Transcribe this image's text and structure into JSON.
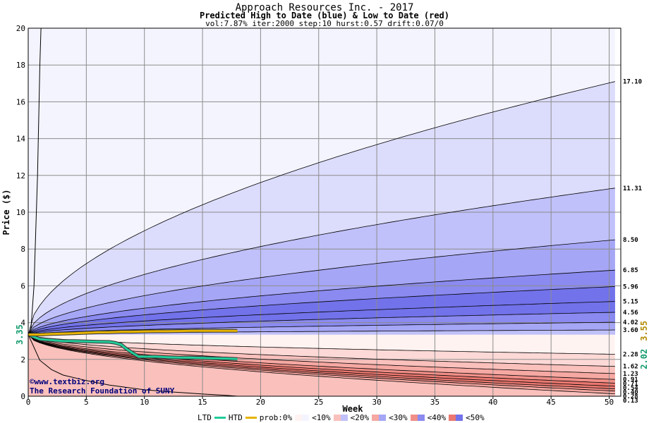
{
  "header": {
    "title": "Approach Resources Inc. - 2017",
    "subtitle": "Predicted High to Date (blue) &  Low to Date (red)",
    "params": "vol:7.87% iter:2000 step:10 hurst:0.57 drift:0.07/0"
  },
  "credit": {
    "line1": "©www.textbiz.org",
    "line2": "The Research Foundation of SUNY"
  },
  "legend": {
    "ltd": "LTD",
    "htd": "HTD",
    "prob": "prob:0%",
    "b1": "<10%",
    "b2": "<20%",
    "b3": "<30%",
    "b4": "<40%",
    "b5": "<50%"
  },
  "colors": {
    "blue_bands": [
      "#f4f4ff",
      "#dcdcfc",
      "#c0c0fa",
      "#a6a6f6",
      "#8a8af0",
      "#7272ea"
    ],
    "red_bands": [
      "#fff3f1",
      "#fcd9d6",
      "#fac0bc",
      "#f6a8a2",
      "#f08f88",
      "#ea7870"
    ],
    "ltd_line": "#22cc99",
    "htd_line": "#e8b400"
  },
  "chart_data": {
    "type": "area",
    "xlabel": "Week",
    "ylabel": "Price ($)",
    "xlim": [
      0,
      51
    ],
    "ylim": [
      0,
      20
    ],
    "x_ticks": [
      0,
      5,
      10,
      15,
      20,
      25,
      30,
      35,
      40,
      45,
      50
    ],
    "y_ticks": [
      0,
      2,
      4,
      6,
      8,
      10,
      12,
      14,
      16,
      18,
      20
    ],
    "grid": true,
    "start_price": 3.35,
    "start_label": "3.35",
    "right_markers": [
      {
        "label": "3.55",
        "value": 3.55,
        "color": "#b08a00"
      },
      {
        "label": "2.02",
        "value": 2.02,
        "color": "#129a6a"
      }
    ],
    "high_quantiles_end": [
      {
        "label": "17.10",
        "value": 17.1
      },
      {
        "label": "11.31",
        "value": 11.31
      },
      {
        "label": "8.50",
        "value": 8.5
      },
      {
        "label": "6.85",
        "value": 6.85
      },
      {
        "label": "5.96",
        "value": 5.96
      },
      {
        "label": "5.15",
        "value": 5.15
      },
      {
        "label": "4.56",
        "value": 4.56
      },
      {
        "label": "4.02",
        "value": 4.02
      },
      {
        "label": "3.60",
        "value": 3.6
      }
    ],
    "low_quantiles_end": [
      {
        "label": "2.28",
        "value": 2.28
      },
      {
        "label": "1.62",
        "value": 1.62
      },
      {
        "label": "1.23",
        "value": 1.23
      },
      {
        "label": "0.91",
        "value": 0.91
      },
      {
        "label": "0.71",
        "value": 0.71
      },
      {
        "label": "0.54",
        "value": 0.54
      },
      {
        "label": "0.40",
        "value": 0.4
      },
      {
        "label": "0.28",
        "value": 0.28
      },
      {
        "label": "0.13",
        "value": 0.13
      }
    ],
    "series": [
      {
        "name": "LTD",
        "x": [
          0,
          1,
          2,
          3,
          4,
          5,
          6,
          7,
          7.5,
          8,
          8.5,
          9,
          9.5,
          10,
          11,
          12,
          13,
          14,
          15,
          16,
          17,
          18
        ],
        "values": [
          3.35,
          3.1,
          3.05,
          3.0,
          3.0,
          2.98,
          2.96,
          2.95,
          2.9,
          2.8,
          2.55,
          2.35,
          2.15,
          2.15,
          2.15,
          2.12,
          2.1,
          2.1,
          2.08,
          2.06,
          2.05,
          2.02
        ]
      },
      {
        "name": "HTD",
        "x": [
          0,
          1,
          2,
          3,
          4,
          5,
          6,
          7,
          8,
          9,
          10,
          11,
          12,
          13,
          14,
          15,
          16,
          17,
          18
        ],
        "values": [
          3.35,
          3.35,
          3.38,
          3.4,
          3.42,
          3.45,
          3.47,
          3.48,
          3.5,
          3.5,
          3.52,
          3.53,
          3.53,
          3.54,
          3.55,
          3.55,
          3.55,
          3.55,
          3.55
        ]
      }
    ],
    "max_path": {
      "x": [
        0.2,
        0.5,
        0.8,
        1.0,
        1.1
      ],
      "values": [
        3.35,
        6.0,
        12.0,
        18.0,
        20.0
      ]
    },
    "min_path": {
      "x": [
        0,
        1,
        2,
        3,
        5,
        7,
        10,
        12,
        15,
        17,
        18
      ],
      "values": [
        3.35,
        1.95,
        1.45,
        1.15,
        0.85,
        0.6,
        0.35,
        0.25,
        0.12,
        0.05,
        0.0
      ]
    }
  }
}
